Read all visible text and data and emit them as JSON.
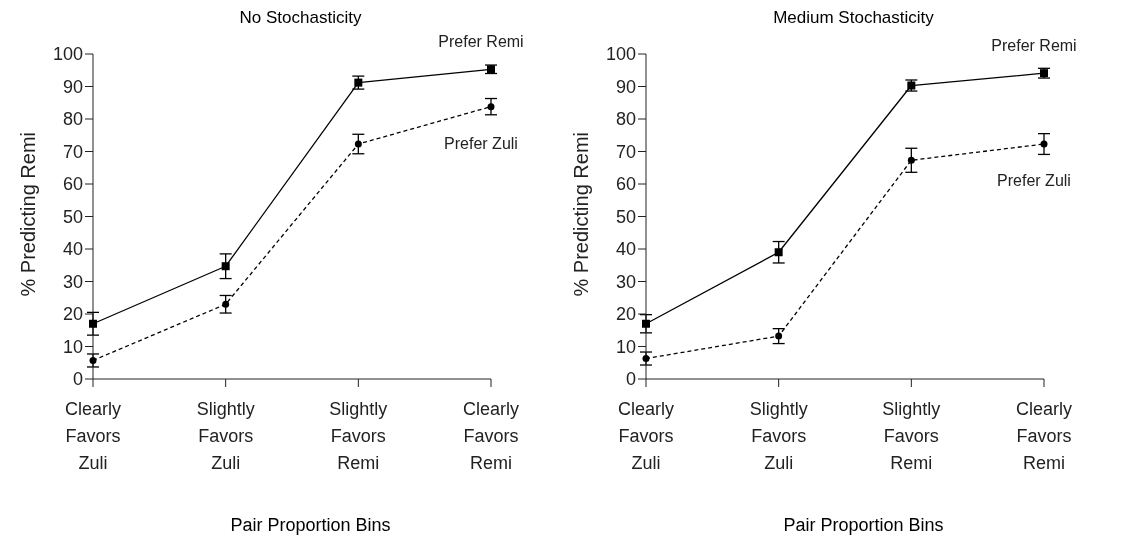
{
  "chart_data": [
    {
      "type": "line",
      "title": "No Stochasticity",
      "xlabel": "Pair Proportion Bins",
      "ylabel": "% Predicting Remi",
      "categories": [
        "Clearly\nFavors\nZuli",
        "Slightly\nFavors\nZuli",
        "Slightly\nFavors\nRemi",
        "Clearly\nFavors\nRemi"
      ],
      "ylim": [
        0,
        100
      ],
      "yticks": [
        0,
        10,
        20,
        30,
        40,
        50,
        60,
        70,
        80,
        90,
        100
      ],
      "grid": false,
      "legend": false,
      "series": [
        {
          "name": "Prefer Remi",
          "color": "#000000",
          "marker": "square",
          "line_style": "solid",
          "values": [
            17,
            34.7,
            91.2,
            95.3
          ],
          "errors": [
            3.5,
            3.8,
            2,
            1.3
          ]
        },
        {
          "name": "Prefer Zuli",
          "color": "#000000",
          "marker": "circle",
          "line_style": "dashed",
          "values": [
            5.7,
            23,
            72.3,
            83.8
          ],
          "errors": [
            2,
            2.7,
            3,
            2.5
          ]
        }
      ]
    },
    {
      "type": "line",
      "title": "Medium Stochasticity",
      "xlabel": "Pair Proportion Bins",
      "ylabel": "% Predicting Remi",
      "categories": [
        "Clearly\nFavors\nZuli",
        "Slightly\nFavors\nZuli",
        "Slightly\nFavors\nRemi",
        "Clearly\nFavors\nRemi"
      ],
      "ylim": [
        0,
        100
      ],
      "yticks": [
        0,
        10,
        20,
        30,
        40,
        50,
        60,
        70,
        80,
        90,
        100
      ],
      "grid": false,
      "legend": false,
      "series": [
        {
          "name": "Prefer Remi",
          "color": "#000000",
          "marker": "square",
          "line_style": "solid",
          "values": [
            17,
            39,
            90.3,
            94.1
          ],
          "errors": [
            2.8,
            3.3,
            1.7,
            1.5
          ]
        },
        {
          "name": "Prefer Zuli",
          "color": "#000000",
          "marker": "circle",
          "line_style": "dashed",
          "values": [
            6.3,
            13.2,
            67.3,
            72.3
          ],
          "errors": [
            2,
            2.3,
            3.7,
            3.2
          ]
        }
      ]
    }
  ]
}
